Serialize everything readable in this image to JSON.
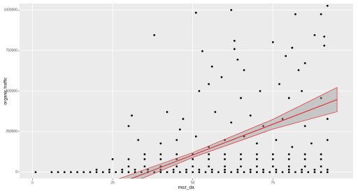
{
  "chart_data": {
    "type": "scatter",
    "x_label": "moz_da",
    "y_label": "organic traffic",
    "xlim": [
      -4,
      100
    ],
    "xticks": [
      0,
      25,
      50,
      75
    ],
    "ylim": [
      -40000,
      1040000
    ],
    "yticks": [
      0,
      250000,
      500000,
      750000,
      1000000
    ],
    "grid": true,
    "color": "#000000",
    "x": [
      1,
      6,
      8,
      10,
      12,
      14,
      16,
      18,
      20,
      22,
      24,
      26,
      28,
      30,
      32,
      34,
      36,
      38,
      40,
      42,
      44,
      46,
      48,
      50,
      52,
      54,
      56,
      58,
      60,
      62,
      64,
      66,
      68,
      70,
      72,
      74,
      76,
      78,
      80,
      82,
      84,
      86,
      88,
      90,
      92,
      20,
      24,
      28,
      32,
      36,
      40,
      44,
      48,
      52,
      56,
      60,
      64,
      68,
      72,
      76,
      80,
      84,
      88,
      92,
      30,
      35,
      40,
      45,
      50,
      55,
      60,
      65,
      70,
      75,
      80,
      85,
      90,
      25,
      30,
      35,
      40,
      45,
      50,
      55,
      60,
      65,
      70,
      75,
      80,
      85,
      90,
      35,
      40,
      45,
      50,
      55,
      60,
      65,
      70,
      75,
      80,
      85,
      90,
      51,
      62,
      82,
      92,
      90,
      38,
      53,
      63,
      63,
      64,
      56,
      75,
      79,
      81,
      83,
      85,
      88,
      91,
      91,
      52,
      55,
      59,
      66,
      65,
      71,
      77,
      80,
      84,
      90,
      42,
      46,
      31,
      30,
      47,
      57,
      62,
      68,
      72,
      78,
      85,
      92,
      33,
      40,
      45,
      51,
      55,
      60,
      66,
      70,
      76,
      81,
      87,
      92
    ],
    "values": [
      0,
      0,
      0,
      0,
      0,
      0,
      0,
      0,
      0,
      0,
      0,
      0,
      0,
      0,
      0,
      0,
      0,
      0,
      0,
      0,
      0,
      0,
      0,
      0,
      0,
      0,
      0,
      0,
      0,
      0,
      0,
      0,
      0,
      0,
      0,
      0,
      0,
      0,
      0,
      0,
      0,
      0,
      0,
      0,
      0,
      15000,
      15000,
      15000,
      15000,
      15000,
      15000,
      15000,
      15000,
      15000,
      15000,
      15000,
      15000,
      15000,
      15000,
      15000,
      15000,
      15000,
      15000,
      15000,
      35000,
      35000,
      35000,
      35000,
      35000,
      35000,
      35000,
      35000,
      35000,
      35000,
      35000,
      35000,
      35000,
      80000,
      80000,
      80000,
      80000,
      80000,
      80000,
      80000,
      80000,
      80000,
      80000,
      80000,
      80000,
      80000,
      80000,
      110000,
      110000,
      110000,
      110000,
      110000,
      110000,
      110000,
      110000,
      110000,
      110000,
      110000,
      110000,
      983000,
      1000000,
      974000,
      1026000,
      974000,
      845000,
      746000,
      810000,
      759000,
      694000,
      651000,
      802000,
      716000,
      767000,
      629000,
      672000,
      845000,
      836000,
      780000,
      500000,
      543000,
      586000,
      629000,
      457000,
      500000,
      543000,
      457000,
      500000,
      457000,
      371000,
      263000,
      349000,
      284000,
      328000,
      371000,
      306000,
      349000,
      284000,
      328000,
      284000,
      328000,
      198000,
      177000,
      198000,
      220000,
      155000,
      198000,
      220000,
      177000,
      198000,
      155000,
      177000,
      198000
    ],
    "fit": {
      "color": "#e41a1c",
      "band_color": "#999999",
      "x": [
        25,
        50,
        75,
        95
      ],
      "values": [
        -84600,
        105400,
        295400,
        447400
      ],
      "lower": [
        -114600,
        90400,
        265400,
        372400
      ],
      "upper": [
        -54600,
        120400,
        325400,
        522400
      ]
    }
  }
}
